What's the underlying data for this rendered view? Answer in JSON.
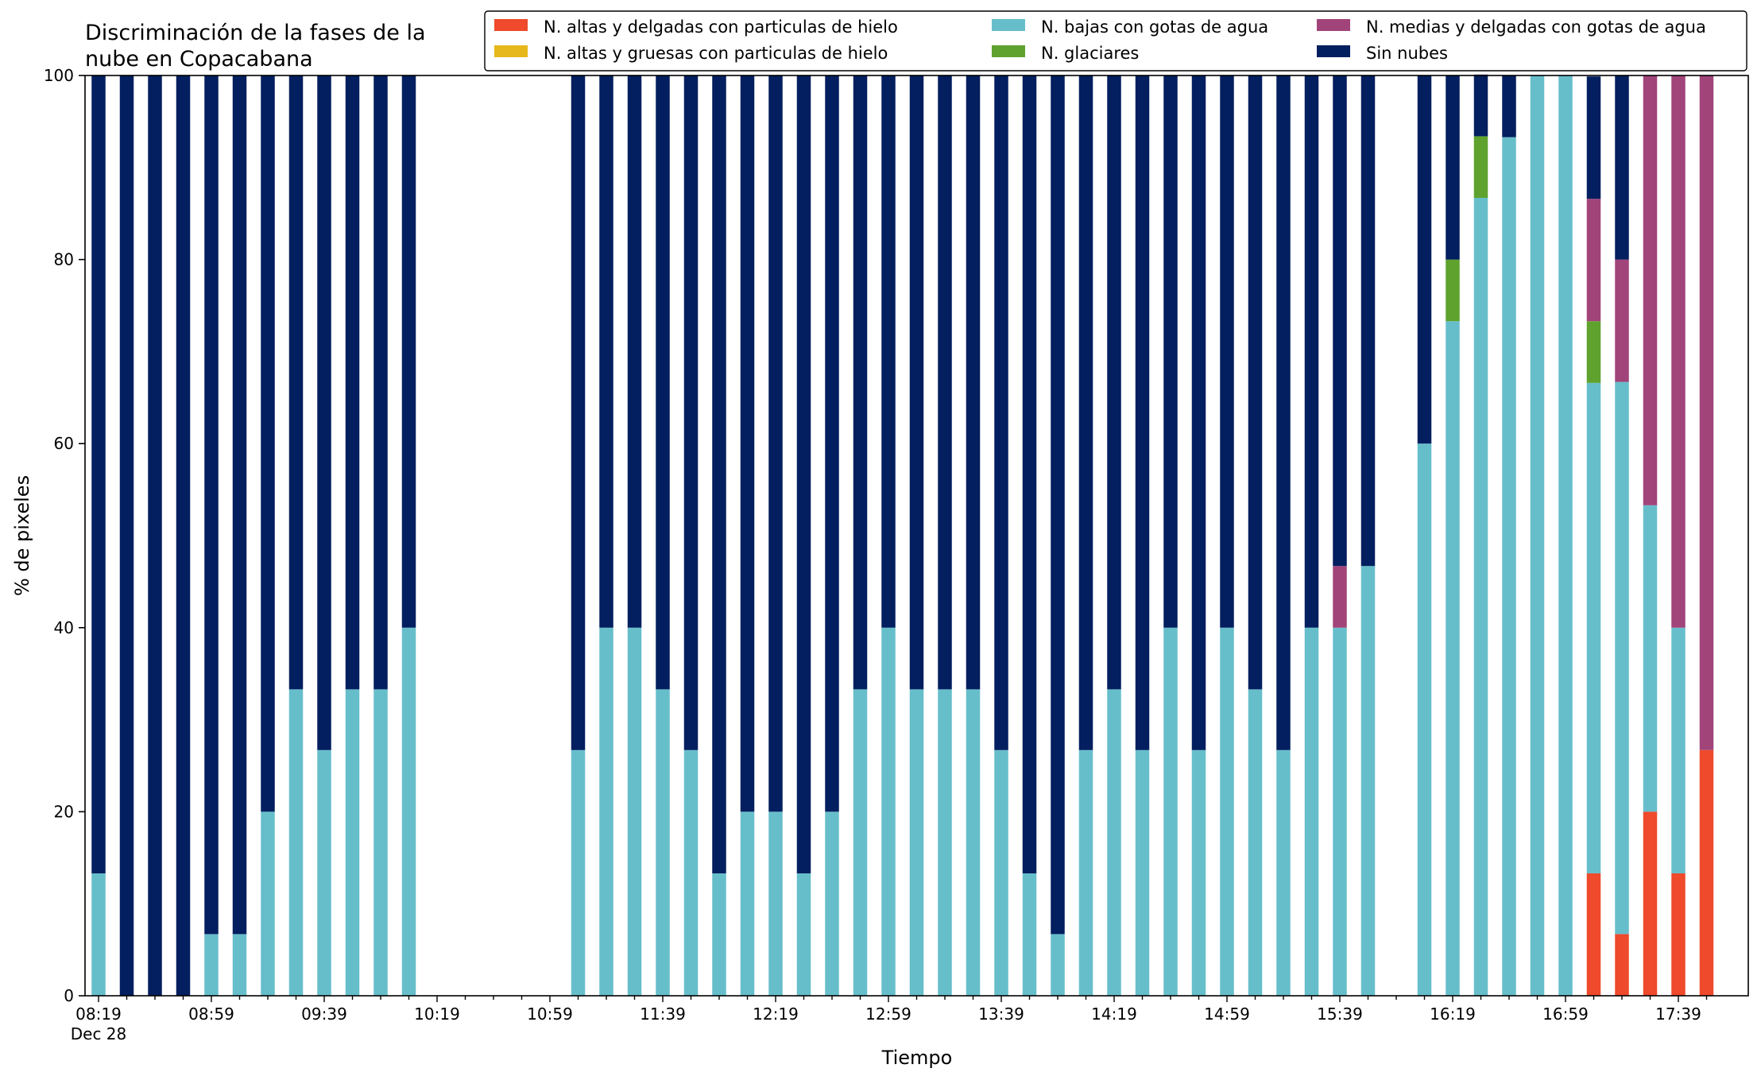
{
  "chart_data": {
    "type": "bar",
    "stacked": true,
    "title": "Discriminación de la fases de la\nnube en Copacabana",
    "xlabel": "Tiempo",
    "ylabel": "% de pixeles",
    "ylim": [
      0,
      100
    ],
    "yticks": [
      0,
      20,
      40,
      60,
      80,
      100
    ],
    "grid": false,
    "legend": {
      "placement": "top-right",
      "columns": 3,
      "entries": [
        {
          "name": "N. altas y delgadas con particulas de hielo",
          "color": "#EE4A2B"
        },
        {
          "name": "N. altas y gruesas con particulas de hielo",
          "color": "#E6B81C"
        },
        {
          "name": "N. bajas con gotas de agua",
          "color": "#67BECB"
        },
        {
          "name": "N. glaciares",
          "color": "#5FA22E"
        },
        {
          "name": "N. medias y delgadas con gotas de agua",
          "color": "#A1447A"
        },
        {
          "name": "Sin nubes",
          "color": "#031F5F"
        }
      ]
    },
    "x_start": "08:19",
    "x_step_minutes": 10,
    "x_tick_labels": [
      "08:19",
      "08:59",
      "09:39",
      "10:19",
      "10:59",
      "11:39",
      "12:19",
      "12:59",
      "13:39",
      "14:19",
      "14:59",
      "15:39",
      "16:19",
      "16:59",
      "17:39"
    ],
    "x_tick_sublabel": "Dec 28",
    "categories": [
      "08:19",
      "08:29",
      "08:39",
      "08:49",
      "08:59",
      "09:09",
      "09:19",
      "09:29",
      "09:39",
      "09:49",
      "09:59",
      "10:09",
      "10:19",
      "10:29",
      "10:39",
      "10:49",
      "10:59",
      "11:09",
      "11:19",
      "11:29",
      "11:39",
      "11:49",
      "11:59",
      "12:09",
      "12:19",
      "12:29",
      "12:39",
      "12:49",
      "12:59",
      "13:09",
      "13:19",
      "13:29",
      "13:39",
      "13:49",
      "13:59",
      "14:09",
      "14:19",
      "14:29",
      "14:39",
      "14:49",
      "14:59",
      "15:09",
      "15:19",
      "15:29",
      "15:39",
      "15:49",
      "15:59",
      "16:09",
      "16:19",
      "16:29",
      "16:39",
      "16:49",
      "16:59",
      "17:09",
      "17:19",
      "17:29",
      "17:39",
      "17:49"
    ],
    "series": [
      {
        "name": "N. altas y delgadas con particulas de hielo",
        "color": "#EE4A2B",
        "values": [
          0,
          0,
          0,
          0,
          0,
          0,
          0,
          0,
          0,
          0,
          0,
          0,
          null,
          null,
          null,
          null,
          null,
          0,
          0,
          0,
          0,
          0,
          0,
          0,
          0,
          0,
          0,
          0,
          0,
          0,
          0,
          0,
          0,
          0,
          0,
          0,
          0,
          0,
          0,
          0,
          0,
          0,
          0,
          0,
          0,
          0,
          null,
          0,
          0,
          0,
          0,
          0,
          0,
          13.3,
          6.7,
          20,
          13.3,
          26.7
        ]
      },
      {
        "name": "N. altas y gruesas con particulas de hielo",
        "color": "#E6B81C",
        "values": [
          0,
          0,
          0,
          0,
          0,
          0,
          0,
          0,
          0,
          0,
          0,
          0,
          null,
          null,
          null,
          null,
          null,
          0,
          0,
          0,
          0,
          0,
          0,
          0,
          0,
          0,
          0,
          0,
          0,
          0,
          0,
          0,
          0,
          0,
          0,
          0,
          0,
          0,
          0,
          0,
          0,
          0,
          0,
          0,
          0,
          0,
          null,
          0,
          0,
          0,
          0,
          0,
          0,
          0,
          0,
          0,
          0,
          0
        ]
      },
      {
        "name": "N. bajas con gotas de agua",
        "color": "#67BECB",
        "values": [
          13.3,
          0,
          0,
          0,
          6.7,
          6.7,
          20,
          33.3,
          26.7,
          33.3,
          33.3,
          40,
          null,
          null,
          null,
          null,
          null,
          26.7,
          40,
          40,
          33.3,
          26.7,
          13.3,
          20,
          20,
          13.3,
          20,
          33.3,
          40,
          33.3,
          33.3,
          33.3,
          26.7,
          13.3,
          6.7,
          26.7,
          33.3,
          26.7,
          40,
          26.7,
          40,
          33.3,
          26.7,
          40,
          40,
          46.7,
          null,
          60,
          73.3,
          86.7,
          93.3,
          100,
          100,
          53.3,
          60,
          33.3,
          26.7,
          0
        ]
      },
      {
        "name": "N. glaciares",
        "color": "#5FA22E",
        "values": [
          0,
          0,
          0,
          0,
          0,
          0,
          0,
          0,
          0,
          0,
          0,
          0,
          null,
          null,
          null,
          null,
          null,
          0,
          0,
          0,
          0,
          0,
          0,
          0,
          0,
          0,
          0,
          0,
          0,
          0,
          0,
          0,
          0,
          0,
          0,
          0,
          0,
          0,
          0,
          0,
          0,
          0,
          0,
          0,
          0,
          0,
          null,
          0,
          6.7,
          6.7,
          0,
          0,
          0,
          6.7,
          0,
          0,
          0,
          0
        ]
      },
      {
        "name": "N. medias y delgadas con gotas de agua",
        "color": "#A1447A",
        "values": [
          0,
          0,
          0,
          0,
          0,
          0,
          0,
          0,
          0,
          0,
          0,
          0,
          null,
          null,
          null,
          null,
          null,
          0,
          0,
          0,
          0,
          0,
          0,
          0,
          0,
          0,
          0,
          0,
          0,
          0,
          0,
          0,
          0,
          0,
          0,
          0,
          0,
          0,
          0,
          0,
          0,
          0,
          0,
          0,
          6.7,
          0,
          null,
          0,
          0,
          0,
          0,
          0,
          0,
          13.3,
          13.3,
          46.7,
          60,
          73.3
        ]
      },
      {
        "name": "Sin nubes",
        "color": "#031F5F",
        "values": [
          86.7,
          100,
          100,
          100,
          93.3,
          93.3,
          80,
          66.7,
          73.3,
          66.7,
          66.7,
          60,
          null,
          null,
          null,
          null,
          null,
          73.3,
          60,
          60,
          66.7,
          73.3,
          86.7,
          80,
          80,
          86.7,
          80,
          66.7,
          60,
          66.7,
          66.7,
          66.7,
          73.3,
          86.7,
          93.3,
          73.3,
          66.7,
          73.3,
          60,
          73.3,
          60,
          66.7,
          73.3,
          60,
          53.3,
          53.3,
          null,
          40,
          20,
          6.7,
          6.7,
          0,
          0,
          13.3,
          20,
          0,
          0,
          0
        ]
      }
    ]
  }
}
